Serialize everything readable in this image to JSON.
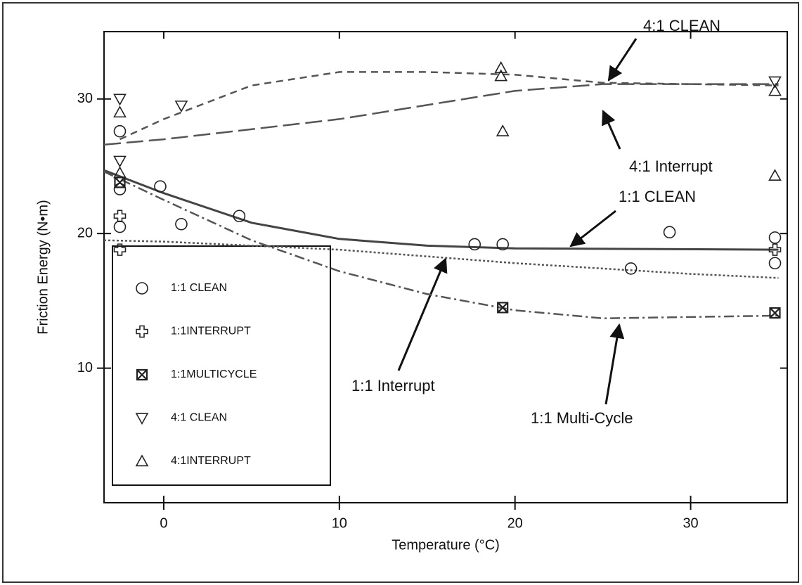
{
  "chart_data": {
    "type": "scatter",
    "xlabel": "Temperature (°C)",
    "ylabel": "Friction Energy (N•m)",
    "xlim": [
      -3.4,
      35.5
    ],
    "ylim": [
      0,
      35
    ],
    "xticks": [
      0,
      10,
      20,
      30
    ],
    "yticks": [
      10,
      20,
      30
    ],
    "series": [
      {
        "name": "1:1 CLEAN",
        "marker": "circle",
        "color": "#222",
        "x": [
          -2.5,
          -2.5,
          -2.5,
          -0.2,
          1,
          4.3,
          17.7,
          19.3,
          26.6,
          28.8,
          34.8,
          34.8
        ],
        "values": [
          27.6,
          23.3,
          20.5,
          23.5,
          20.7,
          21.3,
          19.2,
          19.2,
          17.4,
          20.1,
          19.7,
          17.8
        ]
      },
      {
        "name": "1:1INTERRUPT",
        "marker": "cross",
        "color": "#222",
        "x": [
          -2.5,
          -2.5,
          34.8
        ],
        "values": [
          21.3,
          18.8,
          18.8
        ]
      },
      {
        "name": "1:1MULTICYCLE",
        "marker": "boxx",
        "color": "#222",
        "x": [
          -2.5,
          19.3,
          34.8
        ],
        "values": [
          23.8,
          14.5,
          14.1
        ]
      },
      {
        "name": "4:1 CLEAN",
        "marker": "tridown",
        "color": "#222",
        "x": [
          -2.5,
          -2.5,
          1,
          34.8
        ],
        "values": [
          30,
          25.4,
          29.5,
          31.3
        ]
      },
      {
        "name": "4:1INTERRUPT",
        "marker": "triup",
        "color": "#222",
        "x": [
          -2.5,
          -2.5,
          19.2,
          19.2,
          19.3,
          34.8,
          34.8
        ],
        "values": [
          29,
          24.5,
          32.3,
          31.7,
          27.6,
          30.6,
          24.3
        ]
      }
    ],
    "fits": [
      {
        "style": "dash",
        "color": "#555",
        "x": [
          -2.5,
          0,
          5,
          10,
          15,
          20,
          25,
          30,
          35
        ],
        "y": [
          27,
          28.5,
          31,
          32,
          32,
          31.8,
          31.2,
          31.1,
          31
        ]
      },
      {
        "style": "longdash",
        "color": "#555",
        "x": [
          -3.4,
          0,
          10,
          20,
          25,
          35
        ],
        "y": [
          26.6,
          27,
          28.5,
          30.6,
          31.1,
          31.1
        ]
      },
      {
        "style": "solid",
        "color": "#444",
        "x": [
          -3.4,
          0,
          5,
          10,
          15,
          20,
          35
        ],
        "y": [
          24.7,
          23,
          20.8,
          19.6,
          19.1,
          18.9,
          18.8
        ]
      },
      {
        "style": "dot",
        "color": "#555",
        "x": [
          -3.4,
          0,
          10,
          20,
          30,
          35
        ],
        "y": [
          19.5,
          19.4,
          18.8,
          17.8,
          17,
          16.7
        ]
      },
      {
        "style": "dashdot",
        "color": "#555",
        "x": [
          -3.4,
          0,
          5,
          10,
          15,
          20,
          25,
          30,
          35
        ],
        "y": [
          24.6,
          22.5,
          19.5,
          17.2,
          15.5,
          14.3,
          13.7,
          13.8,
          13.9
        ]
      }
    ],
    "annotations": [
      "4:1 CLEAN",
      "4:1 Interrupt",
      "1:1 CLEAN",
      "1:1 Interrupt",
      "1:1 Multi-Cycle"
    ]
  }
}
